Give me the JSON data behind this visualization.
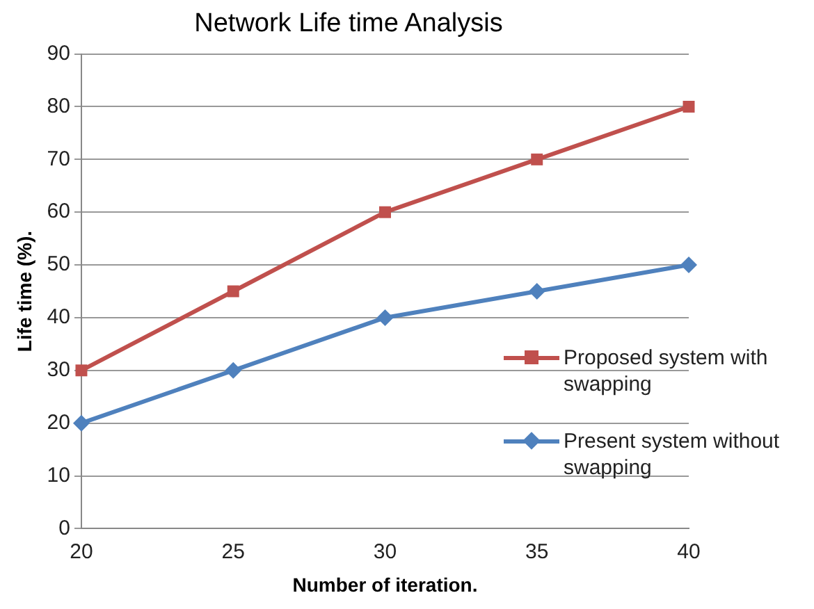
{
  "chart_data": {
    "type": "line",
    "title": "Network Life time Analysis",
    "xlabel": "Number of iteration.",
    "ylabel": "Life time (%).",
    "x": [
      20,
      25,
      30,
      35,
      40
    ],
    "series": [
      {
        "name": "Proposed system with swapping",
        "color": "#c0504d",
        "marker": "square",
        "values": [
          30,
          45,
          60,
          70,
          80
        ]
      },
      {
        "name": "Present system without swapping",
        "color": "#4f81bd",
        "marker": "diamond",
        "values": [
          20,
          30,
          40,
          45,
          50
        ]
      }
    ],
    "xlim": [
      20,
      40
    ],
    "xticks": [
      20,
      25,
      30,
      35,
      40
    ],
    "ylim": [
      0,
      90
    ],
    "yticks": [
      0,
      10,
      20,
      30,
      40,
      50,
      60,
      70,
      80,
      90
    ],
    "grid": "y",
    "legend": "right",
    "line_style": "solid"
  }
}
